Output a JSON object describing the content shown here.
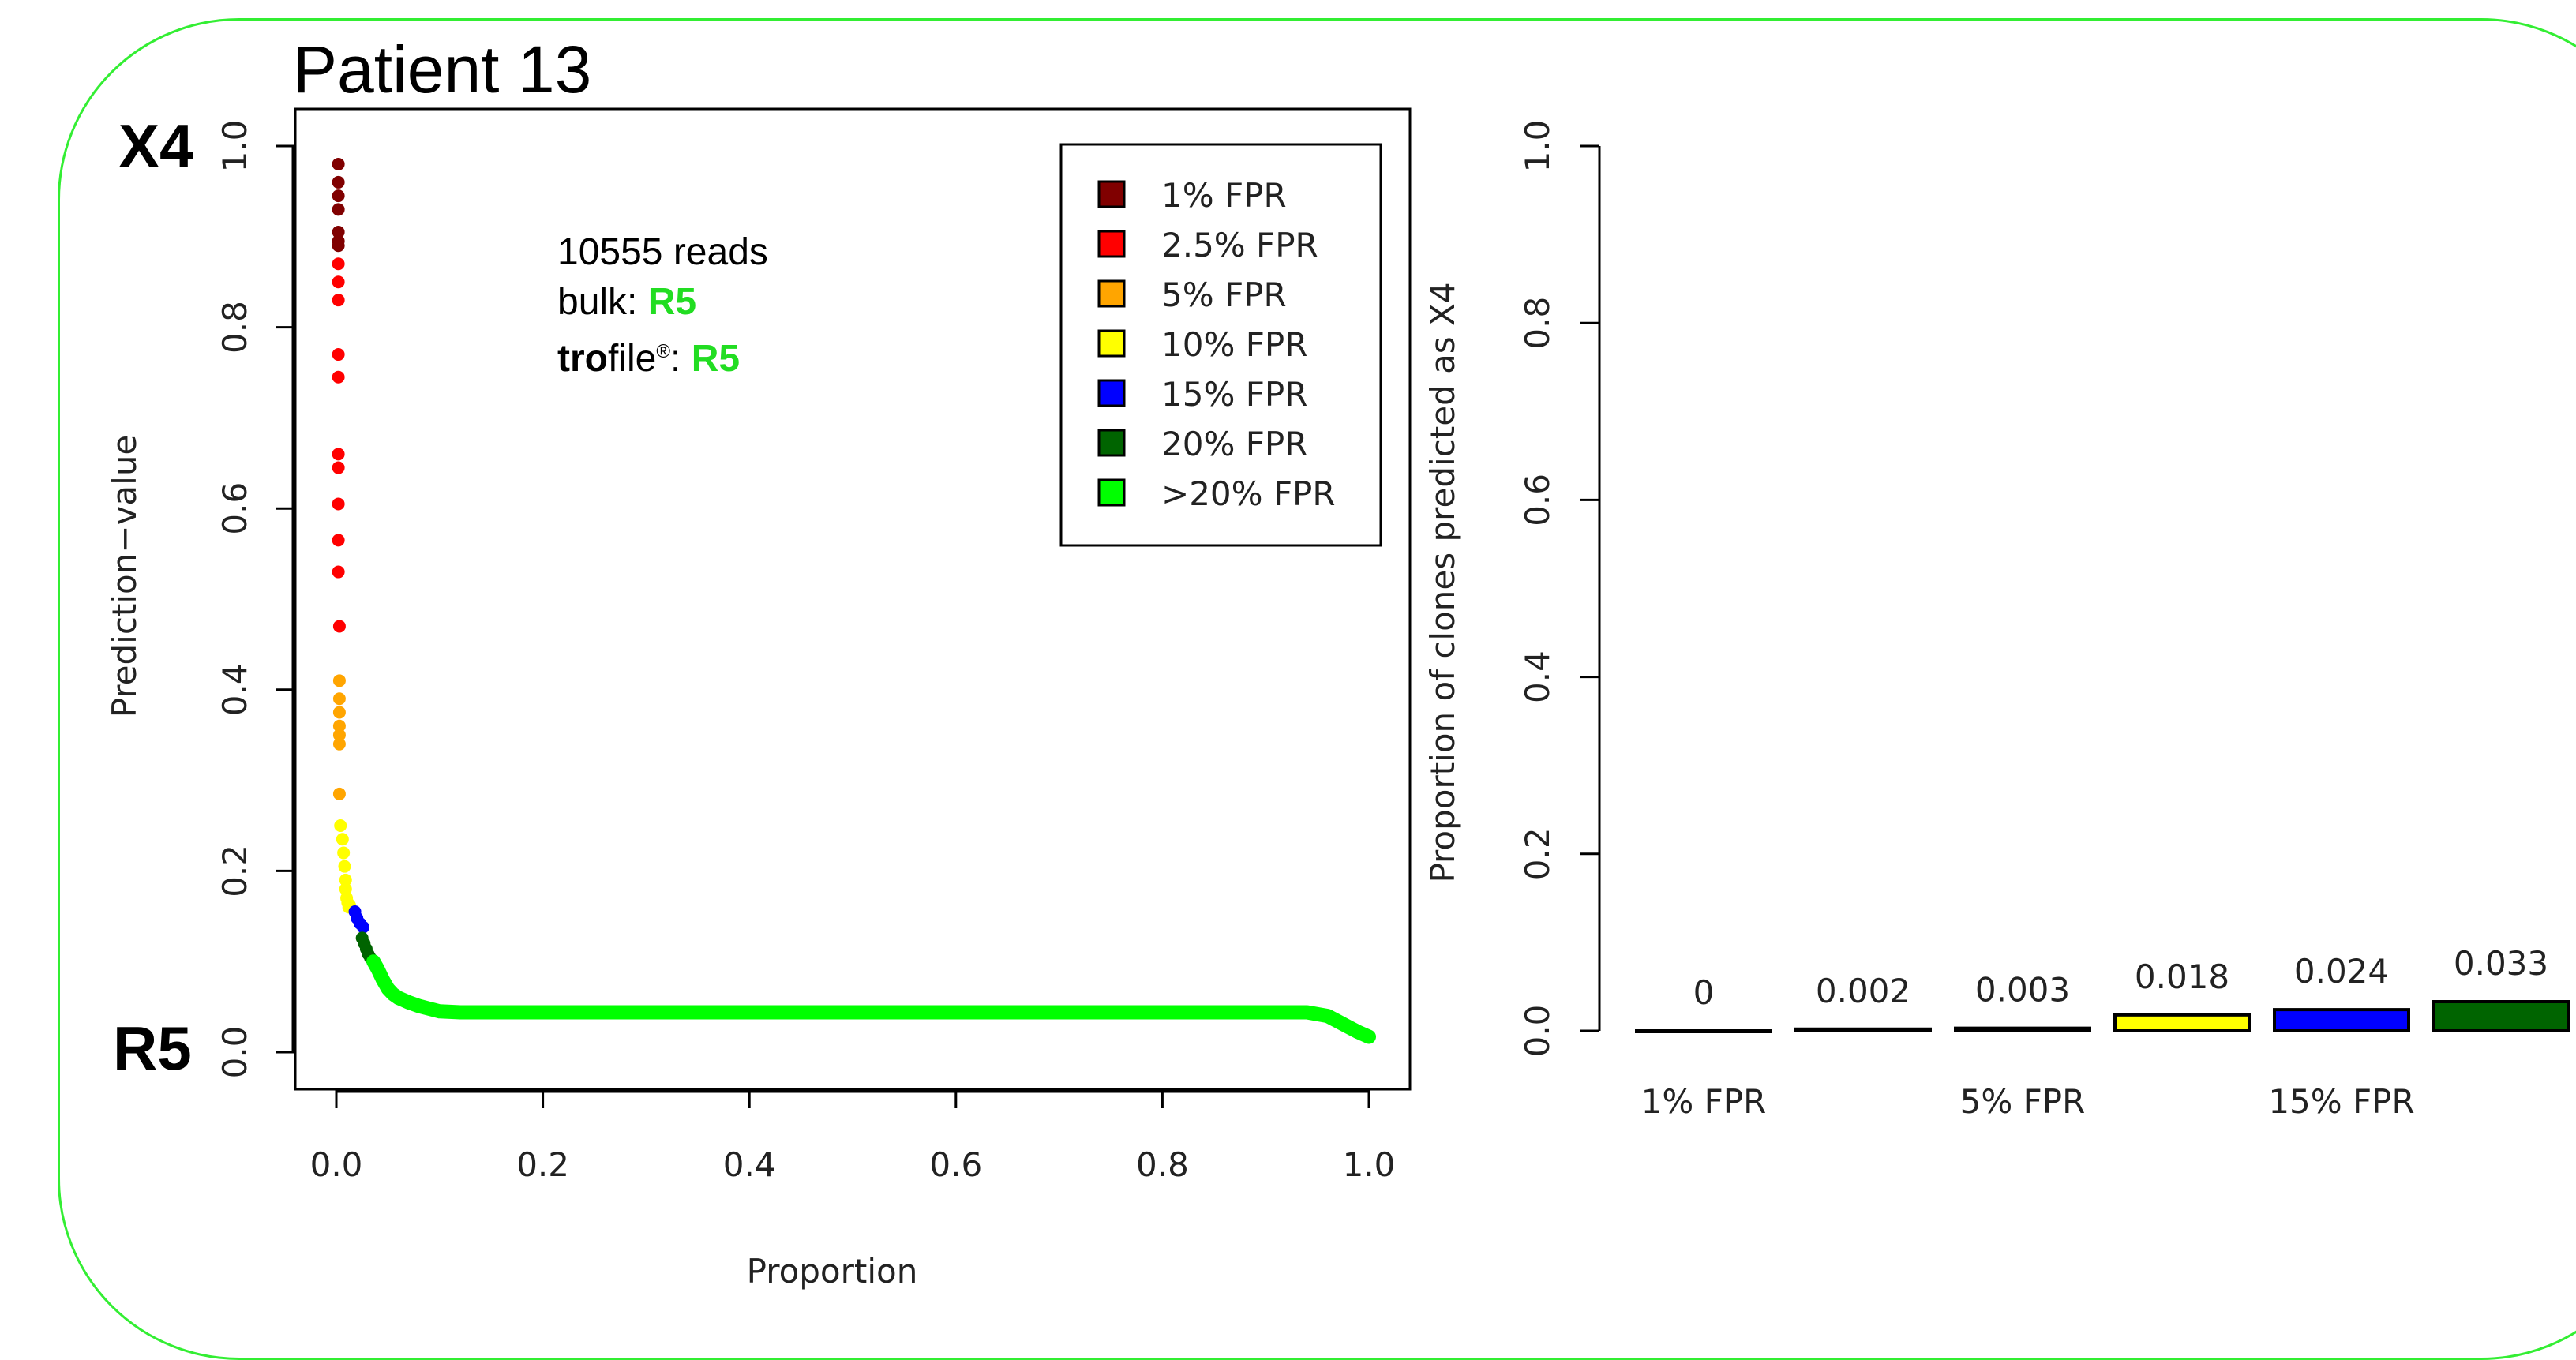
{
  "title": "Patient 13",
  "labels": {
    "top_class": "X4",
    "bottom_class": "R5"
  },
  "annotation": {
    "reads": "10555 reads",
    "bulk_label": "bulk: ",
    "bulk_value": "R5",
    "trofile_bold": "tro",
    "trofile_rest": "file",
    "trofile_mark": "®",
    "trofile_colon": ": ",
    "trofile_value": "R5"
  },
  "colors": {
    "1pct": "#800000",
    "2_5pct": "#ff0000",
    "5pct": "#ffa500",
    "10pct": "#ffff00",
    "15pct": "#0000ff",
    "20pct": "#006400",
    "gt20pct": "#00ff00",
    "frame": "#33ee33"
  },
  "chart_data": [
    {
      "type": "scatter",
      "xlabel": "Proportion",
      "ylabel": "Prediction−value",
      "xlim": [
        0,
        1
      ],
      "ylim": [
        0,
        1
      ],
      "xticks": [
        "0.0",
        "0.2",
        "0.4",
        "0.6",
        "0.8",
        "1.0"
      ],
      "yticks": [
        "0.0",
        "0.2",
        "0.4",
        "0.6",
        "0.8",
        "1.0"
      ],
      "legend": {
        "placement": "top-right",
        "entries": [
          "1% FPR",
          "2.5% FPR",
          "5% FPR",
          "10% FPR",
          "15% FPR",
          "20% FPR",
          ">20% FPR"
        ]
      },
      "series": [
        {
          "name": "1% FPR",
          "color": "#800000",
          "points": [
            [
              0.002,
              0.98
            ],
            [
              0.002,
              0.96
            ],
            [
              0.002,
              0.945
            ],
            [
              0.002,
              0.93
            ],
            [
              0.002,
              0.905
            ],
            [
              0.002,
              0.895
            ],
            [
              0.002,
              0.89
            ]
          ]
        },
        {
          "name": "2.5% FPR",
          "color": "#ff0000",
          "points": [
            [
              0.002,
              0.87
            ],
            [
              0.002,
              0.85
            ],
            [
              0.002,
              0.83
            ],
            [
              0.002,
              0.77
            ],
            [
              0.002,
              0.745
            ],
            [
              0.002,
              0.66
            ],
            [
              0.002,
              0.645
            ],
            [
              0.002,
              0.605
            ],
            [
              0.002,
              0.565
            ],
            [
              0.002,
              0.53
            ],
            [
              0.003,
              0.47
            ]
          ]
        },
        {
          "name": "5% FPR",
          "color": "#ffa500",
          "points": [
            [
              0.003,
              0.41
            ],
            [
              0.003,
              0.39
            ],
            [
              0.003,
              0.375
            ],
            [
              0.003,
              0.36
            ],
            [
              0.003,
              0.35
            ],
            [
              0.003,
              0.34
            ],
            [
              0.003,
              0.285
            ]
          ]
        },
        {
          "name": "10% FPR",
          "color": "#ffff00",
          "points": [
            [
              0.004,
              0.25
            ],
            [
              0.006,
              0.235
            ],
            [
              0.007,
              0.22
            ],
            [
              0.008,
              0.205
            ],
            [
              0.009,
              0.19
            ],
            [
              0.009,
              0.18
            ],
            [
              0.01,
              0.17
            ],
            [
              0.011,
              0.165
            ],
            [
              0.012,
              0.16
            ],
            [
              0.013,
              0.162
            ]
          ]
        },
        {
          "name": "15% FPR",
          "color": "#0000ff",
          "points": [
            [
              0.018,
              0.155
            ],
            [
              0.02,
              0.148
            ],
            [
              0.023,
              0.142
            ],
            [
              0.026,
              0.138
            ]
          ]
        },
        {
          "name": "20% FPR",
          "color": "#006400",
          "points": [
            [
              0.025,
              0.126
            ],
            [
              0.027,
              0.12
            ],
            [
              0.029,
              0.114
            ],
            [
              0.031,
              0.108
            ],
            [
              0.033,
              0.104
            ]
          ]
        },
        {
          "name": ">20% FPR",
          "color": "#00ff00",
          "points": [
            [
              0.036,
              0.1
            ],
            [
              0.04,
              0.092
            ],
            [
              0.045,
              0.08
            ],
            [
              0.05,
              0.07
            ],
            [
              0.055,
              0.064
            ],
            [
              0.06,
              0.06
            ],
            [
              0.07,
              0.055
            ],
            [
              0.08,
              0.051
            ],
            [
              0.09,
              0.048
            ],
            [
              0.1,
              0.045
            ],
            [
              0.12,
              0.044
            ],
            [
              0.2,
              0.044
            ],
            [
              0.3,
              0.044
            ],
            [
              0.4,
              0.044
            ],
            [
              0.5,
              0.044
            ],
            [
              0.6,
              0.044
            ],
            [
              0.7,
              0.044
            ],
            [
              0.8,
              0.044
            ],
            [
              0.9,
              0.044
            ],
            [
              0.94,
              0.044
            ],
            [
              0.96,
              0.04
            ],
            [
              0.97,
              0.034
            ],
            [
              0.98,
              0.028
            ],
            [
              0.99,
              0.022
            ],
            [
              1.0,
              0.017
            ]
          ],
          "line": true
        }
      ]
    },
    {
      "type": "bar",
      "ylabel": "Proportion of clones predicted as X4",
      "ylim": [
        0,
        1
      ],
      "yticks": [
        "0.0",
        "0.2",
        "0.4",
        "0.6",
        "0.8",
        "1.0"
      ],
      "categories": [
        "1% FPR",
        "2.5% FPR",
        "5% FPR",
        "10% FPR",
        "15% FPR",
        "20% FPR"
      ],
      "shown_category_labels": [
        "1% FPR",
        "",
        "5% FPR",
        "",
        "15% FPR",
        ""
      ],
      "values": [
        0,
        0.002,
        0.003,
        0.018,
        0.024,
        0.033
      ],
      "value_labels": [
        "0",
        "0.002",
        "0.003",
        "0.018",
        "0.024",
        "0.033"
      ],
      "colors": [
        "#800000",
        "#ff0000",
        "#ffa500",
        "#ffff00",
        "#0000ff",
        "#006400"
      ]
    }
  ]
}
